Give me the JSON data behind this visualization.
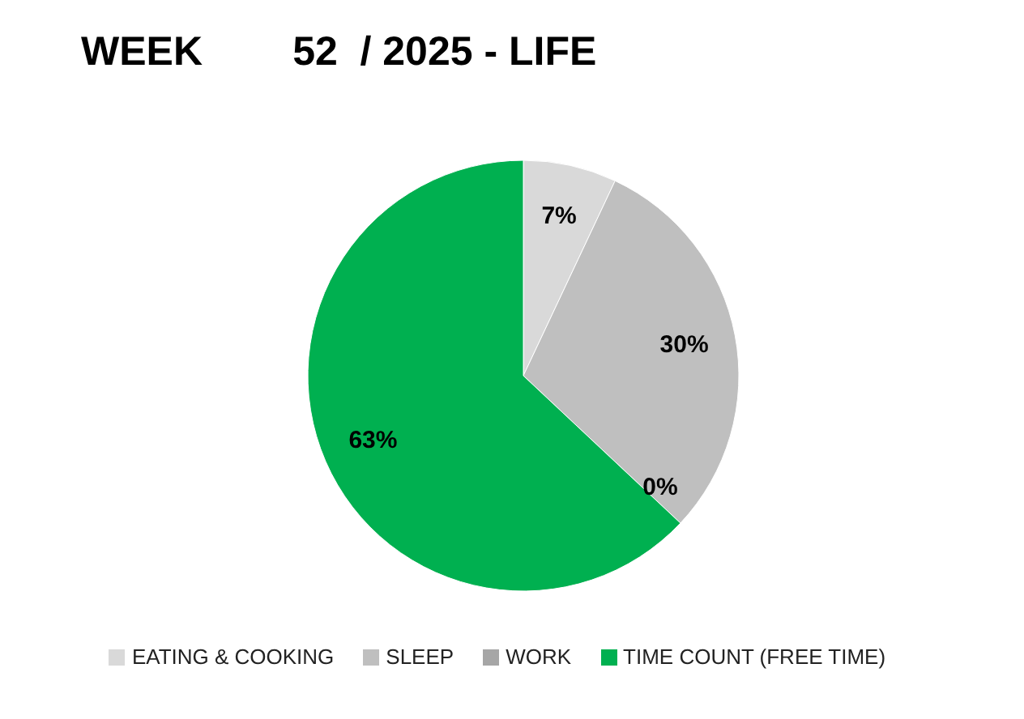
{
  "chart_data": {
    "type": "pie",
    "title": "WEEK        52  / 2025 - LIFE",
    "categories": [
      "EATING & COOKING",
      "SLEEP",
      "WORK",
      "TIME COUNT (FREE TIME)"
    ],
    "values": [
      7,
      30,
      0,
      63
    ],
    "value_labels": [
      "7%",
      "30%",
      "0%",
      "63%"
    ],
    "colors": [
      "#d9d9d9",
      "#bfbfbf",
      "#a6a6a6",
      "#00b050"
    ],
    "legend": "bottom"
  }
}
